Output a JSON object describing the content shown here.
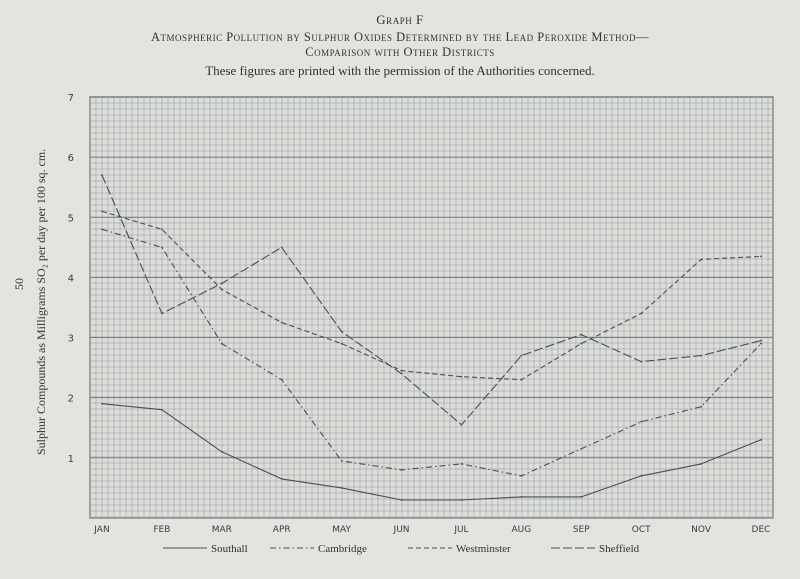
{
  "page_number": "50",
  "chart_data": {
    "type": "line",
    "title": "Graph F",
    "subtitle_line1": "Atmospheric Pollution by Sulphur Oxides Determined by the Lead Peroxide Method—",
    "subtitle_line2": "Comparison with Other Districts",
    "note": "These figures are printed with the permission of the Authorities concerned.",
    "ylabel": "Sulphur Compounds as Milligrams SO₂ per day per 100 sq. cm.",
    "xlabel": "",
    "ylim": [
      0,
      7
    ],
    "yticks": [
      "1",
      "2",
      "3",
      "4",
      "5",
      "6",
      "7"
    ],
    "categories": [
      "JAN",
      "FEB",
      "MAR",
      "APR",
      "MAY",
      "JUN",
      "JUL",
      "AUG",
      "SEP",
      "OCT",
      "NOV",
      "DEC"
    ],
    "grid": true,
    "legend_position": "bottom",
    "series": [
      {
        "name": "Southall",
        "style": "solid",
        "values": [
          1.9,
          1.8,
          1.1,
          0.65,
          0.5,
          0.3,
          0.3,
          0.35,
          0.35,
          0.7,
          0.9,
          1.3
        ]
      },
      {
        "name": "Cambridge",
        "style": "dashdot",
        "values": [
          4.8,
          4.5,
          2.9,
          2.3,
          0.95,
          0.8,
          0.9,
          0.7,
          1.15,
          1.6,
          1.85,
          2.9
        ]
      },
      {
        "name": "Westminster",
        "style": "dashed",
        "values": [
          5.1,
          4.8,
          3.8,
          3.25,
          2.9,
          2.45,
          2.35,
          2.3,
          2.9,
          3.4,
          4.3,
          4.35
        ]
      },
      {
        "name": "Sheffield",
        "style": "longdash",
        "values": [
          5.7,
          3.4,
          3.9,
          4.5,
          3.1,
          2.4,
          1.55,
          2.7,
          3.05,
          2.6,
          2.7,
          2.95
        ]
      }
    ],
    "line_color": "#4a4d52",
    "grid_color": "#8a8d92",
    "background_color": "#e3e4e0"
  }
}
